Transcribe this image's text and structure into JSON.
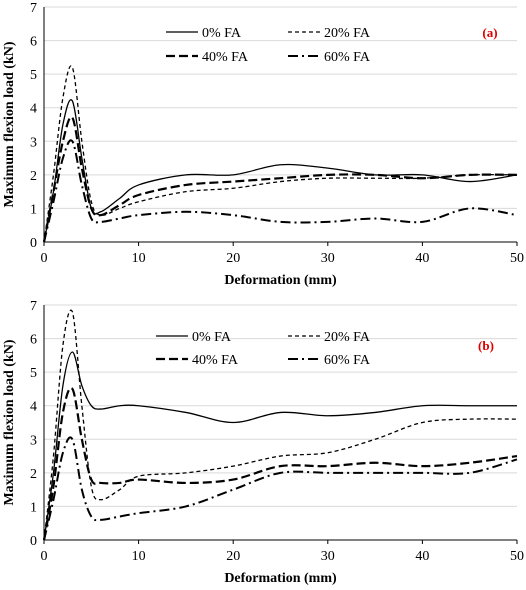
{
  "chart_data": [
    {
      "type": "line",
      "panel_label": "(a)",
      "panel_label_color": "#e00000",
      "xlabel": "Deformation (mm)",
      "ylabel": "Maximum flexion load (kN)",
      "xlim": [
        0,
        50
      ],
      "ylim": [
        0,
        7
      ],
      "x_ticks": [
        "0",
        "10",
        "20",
        "30",
        "40",
        "50"
      ],
      "y_ticks": [
        "0",
        "1",
        "2",
        "3",
        "4",
        "5",
        "6",
        "7"
      ],
      "grid": "horizontal",
      "legend_position": "top-center",
      "series": [
        {
          "name": "0% FA",
          "style": "solid",
          "x": [
            0,
            1,
            2,
            3,
            4,
            5,
            6,
            8,
            10,
            15,
            20,
            25,
            30,
            35,
            40,
            45,
            50
          ],
          "y": [
            0,
            1.5,
            3.5,
            4.2,
            2.5,
            1.0,
            0.9,
            1.3,
            1.7,
            2.0,
            2.0,
            2.3,
            2.2,
            2.0,
            2.0,
            1.8,
            2.0
          ]
        },
        {
          "name": "20% FA",
          "style": "dashed",
          "x": [
            0,
            1,
            2,
            3,
            4,
            5,
            6,
            8,
            10,
            15,
            20,
            25,
            30,
            35,
            40,
            45,
            50
          ],
          "y": [
            0,
            2.0,
            4.3,
            5.2,
            3.0,
            1.2,
            0.8,
            1.0,
            1.2,
            1.5,
            1.6,
            1.8,
            1.9,
            1.9,
            1.9,
            2.0,
            2.0
          ]
        },
        {
          "name": "40% FA",
          "style": "long-dashed",
          "x": [
            0,
            1,
            2,
            3,
            4,
            5,
            6,
            8,
            10,
            15,
            20,
            25,
            30,
            35,
            40,
            45,
            50
          ],
          "y": [
            0,
            1.5,
            3.0,
            3.7,
            2.2,
            1.0,
            0.8,
            1.1,
            1.4,
            1.7,
            1.8,
            1.9,
            2.0,
            2.0,
            1.9,
            2.0,
            2.0
          ]
        },
        {
          "name": "60% FA",
          "style": "dash-dot",
          "x": [
            0,
            1,
            2,
            3,
            4,
            5,
            6,
            8,
            10,
            15,
            20,
            25,
            30,
            35,
            40,
            45,
            50
          ],
          "y": [
            0,
            1.2,
            2.5,
            3.0,
            1.7,
            0.7,
            0.6,
            0.7,
            0.8,
            0.9,
            0.8,
            0.6,
            0.6,
            0.7,
            0.6,
            1.0,
            0.8
          ]
        }
      ]
    },
    {
      "type": "line",
      "panel_label": "(b)",
      "panel_label_color": "#e00000",
      "xlabel": "Deformation (mm)",
      "ylabel": "Maximum flexion load (kN)",
      "xlim": [
        0,
        50
      ],
      "ylim": [
        0,
        7
      ],
      "x_ticks": [
        "0",
        "10",
        "20",
        "30",
        "40",
        "50"
      ],
      "y_ticks": [
        "0",
        "1",
        "2",
        "3",
        "4",
        "5",
        "6",
        "7"
      ],
      "grid": "horizontal",
      "legend_position": "top-center",
      "series": [
        {
          "name": "0% FA",
          "style": "solid",
          "x": [
            0,
            1,
            2,
            3,
            4,
            5,
            6,
            8,
            10,
            15,
            20,
            25,
            30,
            35,
            40,
            45,
            50
          ],
          "y": [
            0,
            2.0,
            4.6,
            5.6,
            4.6,
            4.0,
            3.9,
            4.0,
            4.0,
            3.8,
            3.5,
            3.8,
            3.7,
            3.8,
            4.0,
            4.0,
            4.0
          ]
        },
        {
          "name": "20% FA",
          "style": "dashed",
          "x": [
            0,
            1,
            2,
            3,
            4,
            5,
            6,
            8,
            10,
            15,
            20,
            25,
            30,
            35,
            40,
            45,
            50
          ],
          "y": [
            0,
            2.5,
            5.8,
            6.8,
            4.0,
            1.6,
            1.2,
            1.5,
            1.9,
            2.0,
            2.2,
            2.5,
            2.6,
            3.0,
            3.5,
            3.6,
            3.6
          ]
        },
        {
          "name": "40% FA",
          "style": "long-dashed",
          "x": [
            0,
            1,
            2,
            3,
            4,
            5,
            6,
            8,
            10,
            15,
            20,
            25,
            30,
            35,
            40,
            45,
            50
          ],
          "y": [
            0,
            1.6,
            3.8,
            4.5,
            3.0,
            1.8,
            1.7,
            1.7,
            1.8,
            1.7,
            1.8,
            2.2,
            2.2,
            2.3,
            2.2,
            2.3,
            2.5
          ]
        },
        {
          "name": "60% FA",
          "style": "dash-dot",
          "x": [
            0,
            1,
            2,
            3,
            4,
            5,
            6,
            8,
            10,
            15,
            20,
            25,
            30,
            35,
            40,
            45,
            50
          ],
          "y": [
            0,
            1.2,
            2.6,
            3.0,
            1.5,
            0.7,
            0.6,
            0.7,
            0.8,
            1.0,
            1.5,
            2.0,
            2.0,
            2.0,
            2.0,
            2.0,
            2.4
          ]
        }
      ]
    }
  ]
}
